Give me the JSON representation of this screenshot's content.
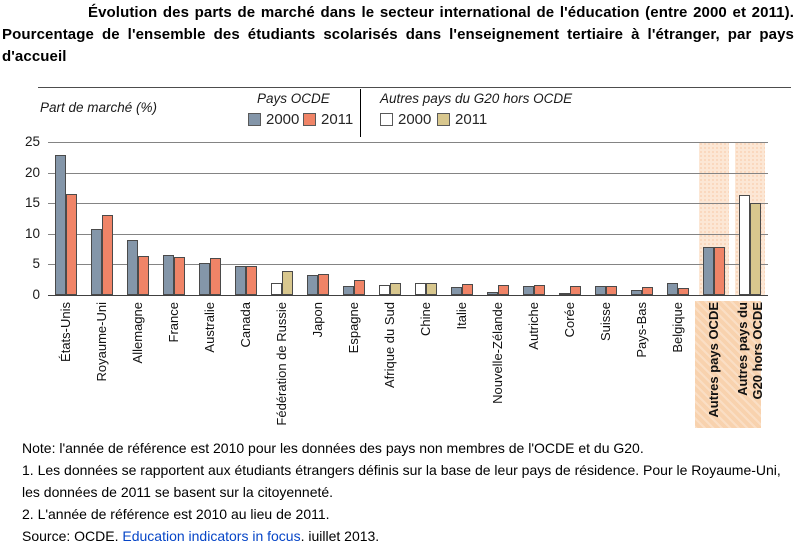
{
  "title": "Évolution des parts de marché dans le secteur international de l'éducation (entre 2000 et 2011). Pourcentage de l'ensemble des étudiants scolarisés dans l'enseignement tertiaire à l'étranger, par pays d'accueil",
  "legend": {
    "axis_title": "Part de marché (%)",
    "group1_label": "Pays OCDE",
    "group2_label": "Autres pays du G20 hors OCDE",
    "year1": "2000",
    "year2": "2011"
  },
  "colors": {
    "oecd_2000": "#8496a9",
    "oecd_2011": "#f08467",
    "g20_2000": "#ffffff",
    "g20_2011": "#d8c78e",
    "bar_border": "#4a4a4a",
    "highlight_band": "#fce7d5",
    "highlight_label_block": "#f8d2ae",
    "gridline": "#848484",
    "link": "#0645c7"
  },
  "chart_data": {
    "type": "bar",
    "title": "Évolution des parts de marché dans le secteur international de l'éducation (entre 2000 et 2011)",
    "xlabel": "",
    "ylabel": "Part de marché (%)",
    "ylim": [
      0,
      25
    ],
    "yticks": [
      0,
      5,
      10,
      15,
      20,
      25
    ],
    "grid": true,
    "legend_position": "top",
    "categories": [
      "États-Unis",
      "Royaume-Uni",
      "Allemagne",
      "France",
      "Australie",
      "Canada",
      "Fédération de Russie",
      "Japon",
      "Espagne",
      "Afrique du Sud",
      "Chine",
      "Italie",
      "Nouvelle-Zélande",
      "Autriche",
      "Corée",
      "Suisse",
      "Pays-Bas",
      "Belgique",
      "Autres pays OCDE",
      "Autres pays du\nG20 hors OCDE"
    ],
    "palette": [
      "oecd",
      "oecd",
      "oecd",
      "oecd",
      "oecd",
      "oecd",
      "g20",
      "oecd",
      "oecd",
      "g20",
      "g20",
      "oecd",
      "oecd",
      "oecd",
      "oecd",
      "oecd",
      "oecd",
      "oecd",
      "oecd",
      "g20"
    ],
    "highlighted": [
      false,
      false,
      false,
      false,
      false,
      false,
      false,
      false,
      false,
      false,
      false,
      false,
      false,
      false,
      false,
      false,
      false,
      false,
      true,
      true
    ],
    "series": [
      {
        "name": "2000",
        "values": [
          22.9,
          10.8,
          9.0,
          6.6,
          5.2,
          4.7,
          2.0,
          3.2,
          1.4,
          1.6,
          1.9,
          1.3,
          0.5,
          1.5,
          0.3,
          1.4,
          0.8,
          1.9,
          7.9,
          16.4
        ]
      },
      {
        "name": "2011",
        "values": [
          16.5,
          13.0,
          6.4,
          6.2,
          6.1,
          4.8,
          3.9,
          3.4,
          2.4,
          1.9,
          1.9,
          1.8,
          1.7,
          1.6,
          1.5,
          1.4,
          1.3,
          1.2,
          7.8,
          15.1
        ]
      }
    ]
  },
  "notes": {
    "note": "Note: l'année de référence est 2010 pour les données des pays non membres de l'OCDE et du G20.",
    "footnote1": "1. Les données se rapportent aux étudiants étrangers définis sur la base de leur pays de résidence. Pour le Royaume-Uni, les données de 2011 se basent sur la citoyenneté.",
    "footnote2": "2. L'année de référence est 2010 au lieu de 2011.",
    "source_prefix": "Source: OCDE, ",
    "source_link": "Education indicators in focus",
    "source_suffix": ", juillet 2013."
  }
}
